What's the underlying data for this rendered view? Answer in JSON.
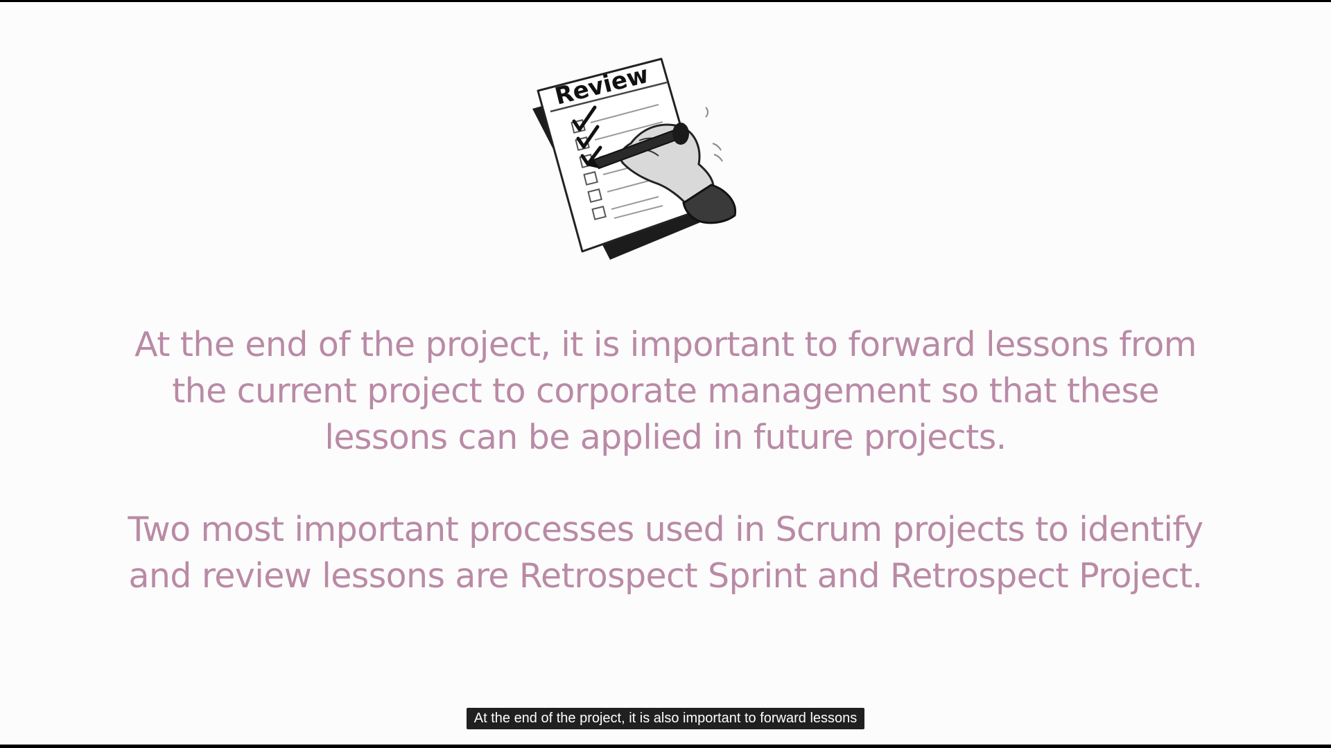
{
  "slide": {
    "image": {
      "icon": "review-checklist-icon",
      "title_text": "Review"
    },
    "paragraph_1": {
      "line_1": "At the end of the project, it is important to forward lessons from",
      "line_2": "the current project to corporate management so that these",
      "line_3": "lessons can be applied in future projects."
    },
    "paragraph_2": {
      "line_1": "Two most important processes used in Scrum projects to identify",
      "line_2": "and review lessons are Retrospect Sprint and Retrospect Project."
    },
    "text_color": "#b98aa6"
  },
  "caption": {
    "text": "At the end of the project, it is also important to forward lessons"
  }
}
